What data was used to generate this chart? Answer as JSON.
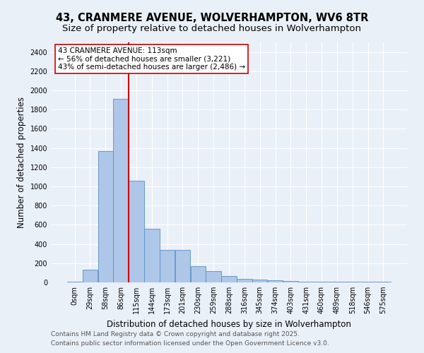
{
  "title": "43, CRANMERE AVENUE, WOLVERHAMPTON, WV6 8TR",
  "subtitle": "Size of property relative to detached houses in Wolverhampton",
  "xlabel": "Distribution of detached houses by size in Wolverhampton",
  "ylabel": "Number of detached properties",
  "bar_values": [
    10,
    130,
    1370,
    1910,
    1060,
    560,
    335,
    335,
    170,
    115,
    65,
    40,
    30,
    25,
    15,
    10,
    5,
    5,
    5,
    5,
    10
  ],
  "bin_labels": [
    "0sqm",
    "29sqm",
    "58sqm",
    "86sqm",
    "115sqm",
    "144sqm",
    "173sqm",
    "201sqm",
    "230sqm",
    "259sqm",
    "288sqm",
    "316sqm",
    "345sqm",
    "374sqm",
    "403sqm",
    "431sqm",
    "460sqm",
    "489sqm",
    "518sqm",
    "546sqm",
    "575sqm"
  ],
  "bar_color": "#aec6e8",
  "bar_edge_color": "#5a8fc2",
  "vline_x": 4,
  "vline_color": "#cc0000",
  "annotation_text": "43 CRANMERE AVENUE: 113sqm\n← 56% of detached houses are smaller (3,221)\n43% of semi-detached houses are larger (2,486) →",
  "annotation_box_color": "#ffffff",
  "annotation_box_edge": "#cc0000",
  "ylim": [
    0,
    2500
  ],
  "yticks": [
    0,
    200,
    400,
    600,
    800,
    1000,
    1200,
    1400,
    1600,
    1800,
    2000,
    2200,
    2400
  ],
  "footer1": "Contains HM Land Registry data © Crown copyright and database right 2025.",
  "footer2": "Contains public sector information licensed under the Open Government Licence v3.0.",
  "bg_color": "#eaf0f8",
  "grid_color": "#ffffff",
  "title_fontsize": 10.5,
  "subtitle_fontsize": 9.5,
  "axis_label_fontsize": 8.5,
  "tick_fontsize": 7,
  "footer_fontsize": 6.5
}
